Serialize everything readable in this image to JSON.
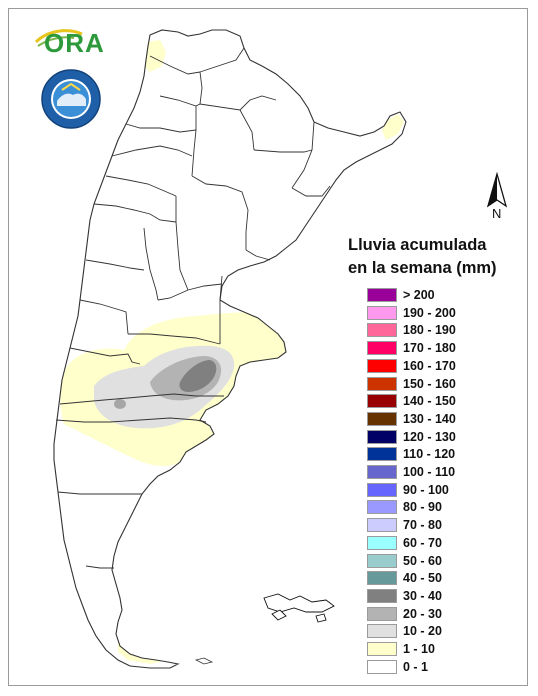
{
  "logos": {
    "ora_text": "ORA",
    "smn_text": "SERVICIO METEOROLOGICO NACIONAL ARGENTINA",
    "smn_short": "SMN"
  },
  "north_arrow": {
    "label": "N"
  },
  "legend": {
    "title_line1": "Lluvia acumulada",
    "title_line2": "en la semana (mm)",
    "items": [
      {
        "label": "> 200",
        "color": "#990099"
      },
      {
        "label": "190 - 200",
        "color": "#ff99ee"
      },
      {
        "label": "180 - 190",
        "color": "#ff6699"
      },
      {
        "label": "170 - 180",
        "color": "#ff0066"
      },
      {
        "label": "160 - 170",
        "color": "#ff0000"
      },
      {
        "label": "150 - 160",
        "color": "#cc3300"
      },
      {
        "label": "140 - 150",
        "color": "#990000"
      },
      {
        "label": "130 - 140",
        "color": "#663300"
      },
      {
        "label": "120 - 130",
        "color": "#000066"
      },
      {
        "label": "110 - 120",
        "color": "#003399"
      },
      {
        "label": "100 - 110",
        "color": "#6666cc"
      },
      {
        "label": "90 - 100",
        "color": "#6666ff"
      },
      {
        "label": "80 - 90",
        "color": "#9999ff"
      },
      {
        "label": "70 - 80",
        "color": "#ccccff"
      },
      {
        "label": "60 - 70",
        "color": "#99ffff"
      },
      {
        "label": "50 - 60",
        "color": "#99cccc"
      },
      {
        "label": "40 - 50",
        "color": "#669999"
      },
      {
        "label": "30 - 40",
        "color": "#808080"
      },
      {
        "label": "20 - 30",
        "color": "#b3b3b3"
      },
      {
        "label": "10 - 20",
        "color": "#e0e0e0"
      },
      {
        "label": "1 - 10",
        "color": "#ffffcc"
      },
      {
        "label": "0 - 1",
        "color": "#ffffff"
      }
    ]
  },
  "colors": {
    "outline": "#333333",
    "rain_1_10": "#ffffcc",
    "rain_10_20": "#e0e0e0",
    "rain_20_30": "#b3b3b3",
    "rain_30_40": "#808080"
  }
}
